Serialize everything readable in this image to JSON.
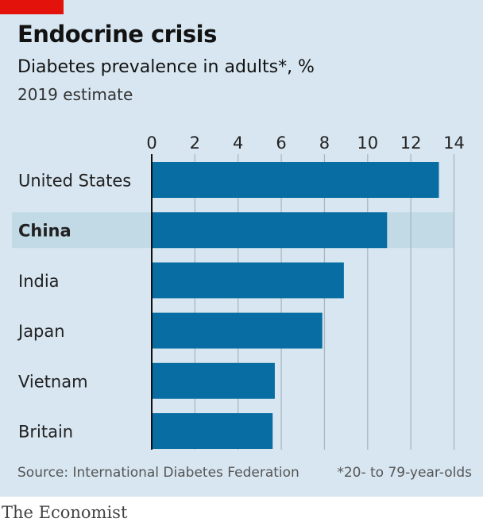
{
  "colors": {
    "accent_red": "#e3120b",
    "bar": "#076da2",
    "highlight": "#c2d9e6",
    "background": "#d7e6f0"
  },
  "chart_data": {
    "type": "bar",
    "orientation": "horizontal",
    "title": "Endocrine crisis",
    "subtitle": "Diabetes prevalence in adults*, %",
    "note": "2019 estimate",
    "categories": [
      "United States",
      "China",
      "India",
      "Japan",
      "Vietnam",
      "Britain"
    ],
    "values": [
      13.3,
      10.9,
      8.9,
      7.9,
      5.7,
      5.6
    ],
    "highlighted": "China",
    "xlim": [
      0,
      14
    ],
    "xticks": [
      0,
      2,
      4,
      6,
      8,
      10,
      12,
      14
    ],
    "axis_position": "top",
    "grid": true,
    "source": "Source: International Diabetes Federation",
    "footnote": "*20- to 79-year-olds"
  },
  "brand": "The Economist"
}
